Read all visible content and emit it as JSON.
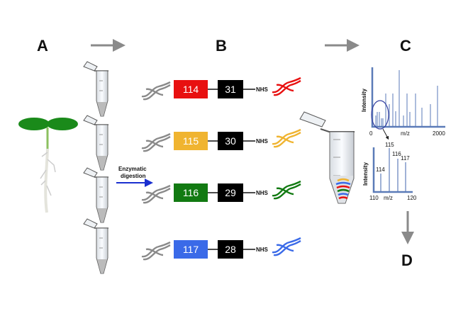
{
  "panels": {
    "a": "A",
    "b": "B",
    "c": "C",
    "d": "D"
  },
  "step": {
    "enzymatic_line1": "Enzymatic",
    "enzymatic_line2": "digestion"
  },
  "tags": [
    {
      "reporter": "114",
      "balancer": "31",
      "group": "NHS",
      "color": "#e81010"
    },
    {
      "reporter": "115",
      "balancer": "30",
      "group": "NHS",
      "color": "#f0b430"
    },
    {
      "reporter": "116",
      "balancer": "29",
      "group": "NHS",
      "color": "#127a12"
    },
    {
      "reporter": "117",
      "balancer": "28",
      "group": "NHS",
      "color": "#3a6ae8"
    }
  ],
  "spectrum_full": {
    "ylabel": "Intensity",
    "xlabel": "m/z",
    "xmin": "0",
    "xmax": "2000"
  },
  "spectrum_zoom": {
    "ylabel": "Intensity",
    "xlabel": "m/z",
    "xmin": "110",
    "xmax": "120",
    "peaks": [
      "114",
      "115",
      "116",
      "117"
    ]
  },
  "colors": {
    "arrow_gray": "#8a8a8a",
    "arrow_blue": "#1a2fd0",
    "spectrum_blue": "#5b7bb8",
    "leaf_green": "#1a8a1a"
  }
}
